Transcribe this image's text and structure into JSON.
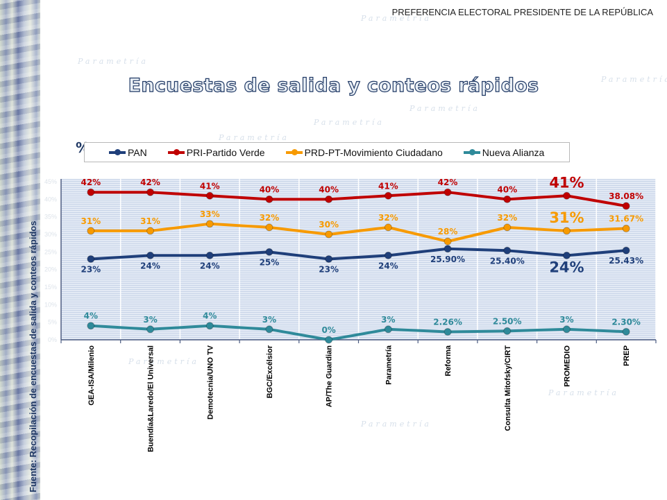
{
  "header": {
    "top_heading": "PREFERENCIA ELECTORAL PRESIDENTE DE LA REPÚBLICA",
    "main_title": "Encuestas de salida y conteos rápidos",
    "watermark": "Parametría"
  },
  "side_note": "Fuente: Recopilación de encuestas de salida y conteos rápidos",
  "chart_data": {
    "type": "line",
    "title": "Encuestas de salida y conteos rápidos",
    "ylabel": "%",
    "xlabel": "",
    "ylim": [
      0,
      45
    ],
    "yticks": [
      "0%",
      "5%",
      "10%",
      "15%",
      "20%",
      "25%",
      "30%",
      "35%",
      "40%",
      "45%"
    ],
    "grid": true,
    "legend_position": "top",
    "categories": [
      "GEA-ISA/Milenio",
      "Buendía&Laredo/El Universal",
      "Demotecnia/UNO TV",
      "BGC/Excélsior",
      "AP/The Guardian",
      "Parametría",
      "Reforma",
      "Consulta Mitofsky/CIRT",
      "PROMEDIO",
      "PREP"
    ],
    "highlight_category": "PROMEDIO",
    "series": [
      {
        "name": "PAN",
        "color": "#1f3f7a",
        "values": [
          23,
          24,
          24,
          25,
          23,
          24,
          25.9,
          25.4,
          24,
          25.43
        ],
        "labels": [
          "23%",
          "24%",
          "24%",
          "25%",
          "23%",
          "24%",
          "25.90%",
          "25.40%",
          "24%",
          "25.43%"
        ],
        "label_position": "below"
      },
      {
        "name": "PRI-Partido Verde",
        "color": "#c00000",
        "values": [
          42,
          42,
          41,
          40,
          40,
          41,
          42,
          40,
          41,
          38.08
        ],
        "labels": [
          "42%",
          "42%",
          "41%",
          "40%",
          "40%",
          "41%",
          "42%",
          "40%",
          "41%",
          "38.08%"
        ],
        "label_position": "above"
      },
      {
        "name": "PRD-PT-Movimiento Ciudadano",
        "color": "#f79a00",
        "values": [
          31,
          31,
          33,
          32,
          30,
          32,
          28,
          32,
          31,
          31.67
        ],
        "labels": [
          "31%",
          "31%",
          "33%",
          "32%",
          "30%",
          "32%",
          "28%",
          "32%",
          "31%",
          "31.67%"
        ],
        "label_position": "above"
      },
      {
        "name": "Nueva Alianza",
        "color": "#2f8a9a",
        "values": [
          4,
          3,
          4,
          3,
          0,
          3,
          2.26,
          2.5,
          3,
          2.3
        ],
        "labels": [
          "4%",
          "3%",
          "4%",
          "3%",
          "0%",
          "3%",
          "2.26%",
          "2.50%",
          "3%",
          "2.30%"
        ],
        "label_position": "above"
      }
    ]
  }
}
